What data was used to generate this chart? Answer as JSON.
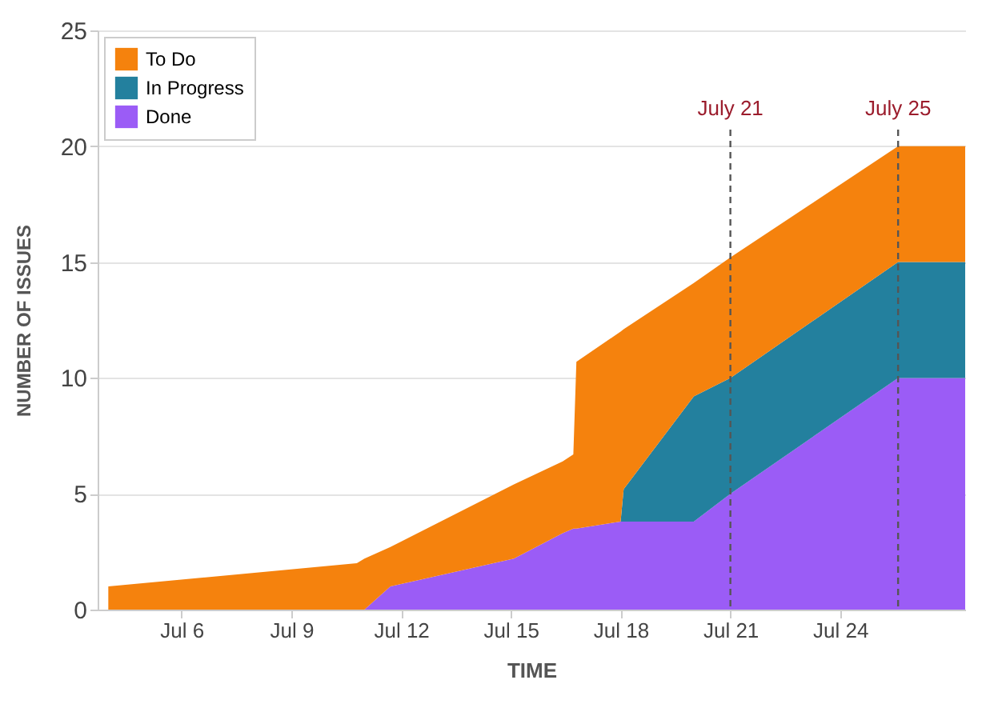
{
  "chart_data": {
    "type": "area",
    "stacked": true,
    "xlabel": "TIME",
    "ylabel": "NUMBER OF ISSUES",
    "x": [
      "--07-04",
      "--07-10T19:00",
      "--07-11",
      "--07-11T17:00",
      "--07-15T02:00",
      "--07-16T10:00",
      "--07-16T17:00",
      "--07-16T19:00",
      "--07-18",
      "--07-18T02:00",
      "--07-20",
      "--07-21",
      "--07-25T14:00",
      "--07-27T10:00"
    ],
    "series": [
      {
        "name": "Done",
        "color": "#9b5cf6",
        "values": [
          0,
          0,
          0,
          1.0,
          2.2,
          3.3,
          3.5,
          3.5,
          3.8,
          3.8,
          3.8,
          5.0,
          10,
          10
        ]
      },
      {
        "name": "In Progress",
        "color": "#23809e",
        "values": [
          0,
          0,
          0,
          0,
          0,
          0,
          0,
          0,
          0,
          1.4,
          5.4,
          5,
          5,
          5
        ]
      },
      {
        "name": "To Do",
        "color": "#f5820d",
        "values": [
          1.0,
          2.0,
          2.2,
          1.7,
          3.2,
          3.1,
          3.2,
          7.2,
          8.2,
          6.9,
          4.9,
          5.2,
          5,
          5
        ]
      }
    ],
    "xlim": [
      "--07-03T17:00",
      "--07-27T10:00"
    ],
    "xticks": [
      {
        "value": "--07-06",
        "label": "Jul 6"
      },
      {
        "value": "--07-09",
        "label": "Jul 9"
      },
      {
        "value": "--07-12",
        "label": "Jul 12"
      },
      {
        "value": "--07-15",
        "label": "Jul 15"
      },
      {
        "value": "--07-18",
        "label": "Jul 18"
      },
      {
        "value": "--07-21",
        "label": "Jul 21"
      },
      {
        "value": "--07-24",
        "label": "Jul 24"
      }
    ],
    "ylim": [
      0,
      25
    ],
    "yticks": [
      0,
      5,
      10,
      15,
      20,
      25
    ],
    "ref_lines": [
      {
        "axis": "x",
        "value": "--07-21",
        "label": "July 21",
        "color": "#555555",
        "line_style": "dashed"
      },
      {
        "axis": "x",
        "value": "--07-25T14:00",
        "label": "July 25",
        "color": "#555555",
        "line_style": "dashed"
      }
    ],
    "grid": "y",
    "legend": "top left"
  }
}
